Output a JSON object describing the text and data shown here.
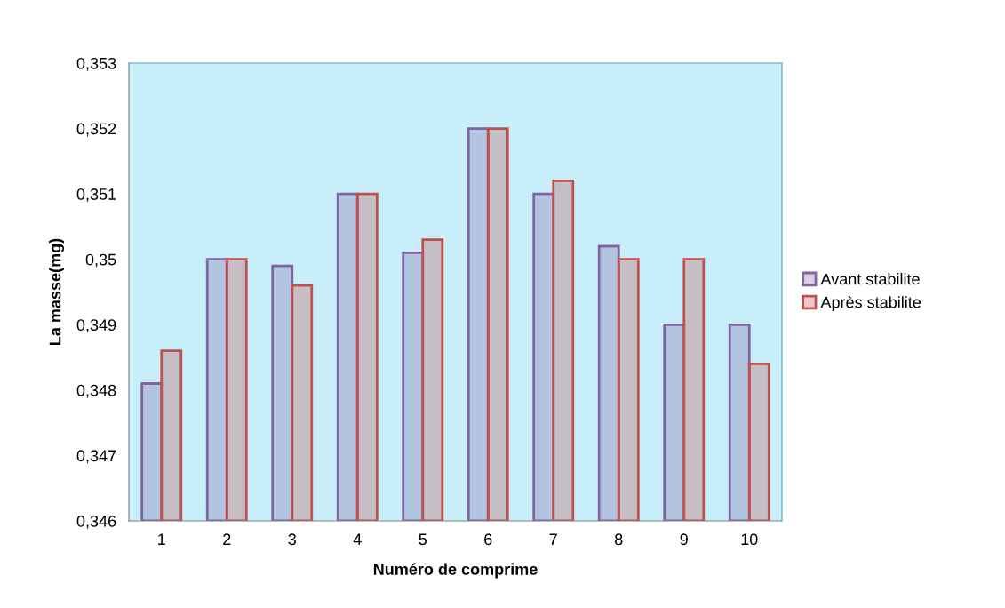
{
  "chart_data": {
    "type": "bar",
    "xlabel": "Numéro de comprime",
    "ylabel": "La masse(mg)",
    "categories": [
      "1",
      "2",
      "3",
      "4",
      "5",
      "6",
      "7",
      "8",
      "9",
      "10"
    ],
    "series": [
      {
        "name": "Avant stabilite",
        "color": "#8064a2",
        "values": [
          0.3481,
          0.35,
          0.3499,
          0.351,
          0.3501,
          0.352,
          0.351,
          0.3502,
          0.349,
          0.349
        ]
      },
      {
        "name": "Après stabilite",
        "color": "#c0504d",
        "values": [
          0.3486,
          0.35,
          0.3496,
          0.351,
          0.3503,
          0.352,
          0.3512,
          0.35,
          0.35,
          0.3484
        ]
      }
    ],
    "ylim": [
      0.346,
      0.353
    ],
    "yticks": [
      {
        "value": 0.346,
        "label": "0,346"
      },
      {
        "value": 0.347,
        "label": "0,347"
      },
      {
        "value": 0.348,
        "label": "0,348"
      },
      {
        "value": 0.349,
        "label": "0,349"
      },
      {
        "value": 0.35,
        "label": "0,35"
      },
      {
        "value": 0.351,
        "label": "0,351"
      },
      {
        "value": 0.352,
        "label": "0,352"
      },
      {
        "value": 0.353,
        "label": "0,353"
      }
    ],
    "grid": false,
    "legend": "right"
  }
}
